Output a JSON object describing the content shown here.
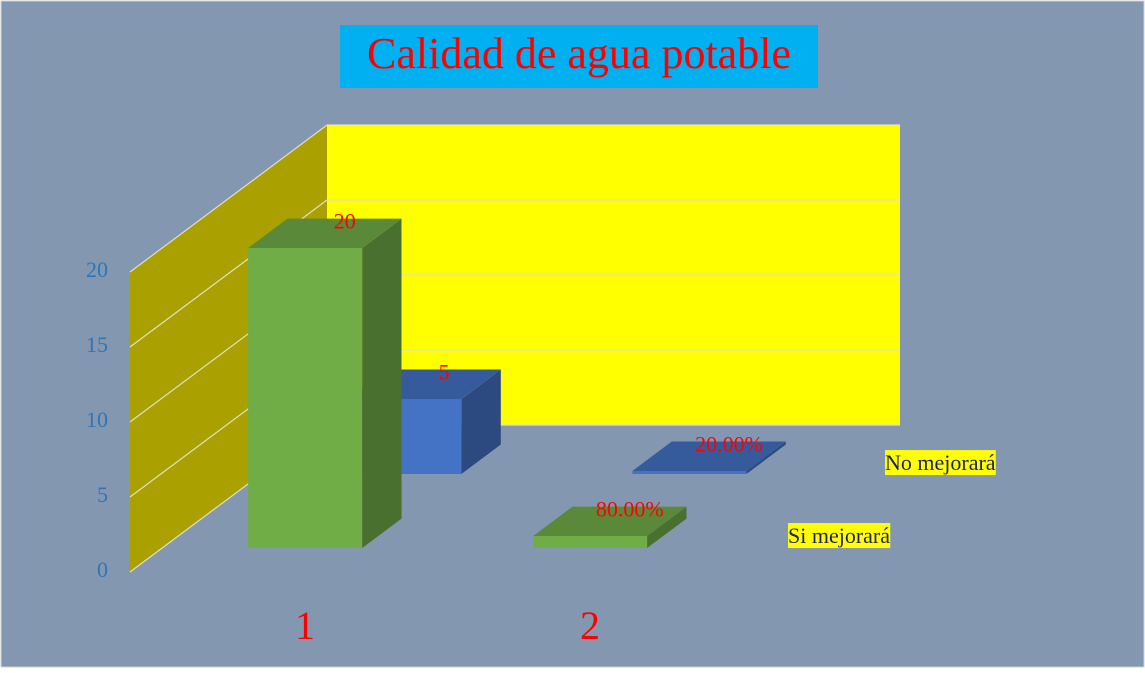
{
  "chart_data": {
    "type": "bar3d",
    "title": "Calidad de agua potable",
    "categories": [
      "1",
      "2"
    ],
    "series": [
      {
        "name": "Si mejorará",
        "color": "#70ad47",
        "values": [
          20,
          0.8
        ],
        "value_labels": [
          "20",
          "80.00%"
        ]
      },
      {
        "name": "No mejorará",
        "color": "#4472c4",
        "values": [
          5,
          0.2
        ],
        "value_labels": [
          "5",
          "20.00%"
        ]
      }
    ],
    "ylim": [
      0,
      20
    ],
    "yticks": [
      0,
      5,
      10,
      15,
      20
    ],
    "grid": true
  }
}
